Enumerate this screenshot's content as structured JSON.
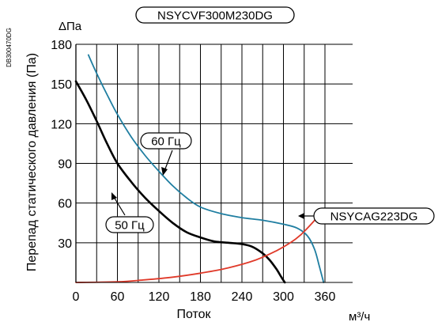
{
  "chart_data": {
    "type": "line",
    "title": "NSYCVF300M230DG",
    "side_code": "DB300470DG",
    "ylabel": "Перепад статического давления (Па)",
    "ylabel_unit": "ΔПа",
    "xlabel": "Поток",
    "xunit": "м³/ч",
    "xticks": [
      "0",
      "60",
      "120",
      "180",
      "240",
      "300",
      "360"
    ],
    "yticks": [
      "30",
      "60",
      "90",
      "120",
      "150",
      "180"
    ],
    "xlim": [
      0,
      400
    ],
    "ylim": [
      0,
      180
    ],
    "grid": true,
    "series": [
      {
        "name": "60 Гц",
        "color": "#1f7ea1",
        "x": [
          18,
          30,
          45,
          60,
          80,
          100,
          120,
          140,
          160,
          180,
          210,
          240,
          270,
          300,
          320,
          335,
          345,
          352,
          358
        ],
        "y": [
          172,
          158,
          142,
          127,
          110,
          96,
          84,
          73,
          64,
          57,
          52,
          49,
          47,
          44,
          41,
          35,
          25,
          12,
          0
        ]
      },
      {
        "name": "50 Гц",
        "color": "#000000",
        "x": [
          0,
          15,
          30,
          45,
          60,
          80,
          100,
          120,
          140,
          160,
          180,
          200,
          220,
          240,
          255,
          270,
          280,
          290,
          297,
          302
        ],
        "y": [
          152,
          138,
          122,
          105,
          90,
          76,
          64,
          54,
          45,
          38,
          34,
          31,
          30,
          29,
          27,
          22,
          17,
          10,
          4,
          0
        ]
      },
      {
        "name": "NSYCAG223DG",
        "color": "#e03a2a",
        "x": [
          0,
          60,
          100,
          140,
          180,
          220,
          260,
          290,
          310,
          325,
          340,
          350
        ],
        "y": [
          0,
          0.5,
          2,
          4,
          7,
          11,
          17,
          24,
          30,
          36,
          44,
          50
        ]
      }
    ]
  }
}
